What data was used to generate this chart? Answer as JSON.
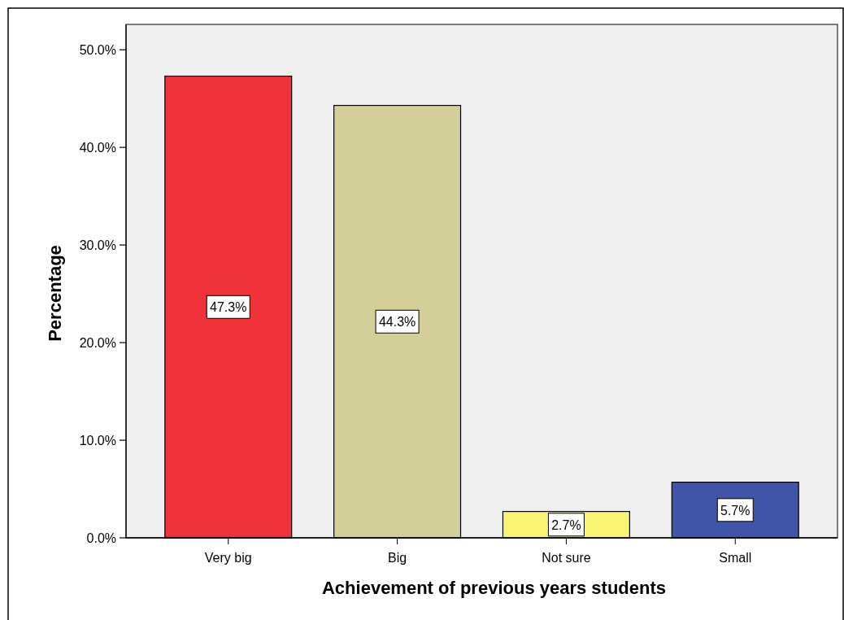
{
  "chart_data": {
    "type": "bar",
    "xlabel": "Achievement of previous years students",
    "ylabel": "Percentage",
    "categories": [
      "Very big",
      "Big",
      "Not sure",
      "Small"
    ],
    "values": [
      47.3,
      44.3,
      2.7,
      5.7
    ],
    "value_labels": [
      "47.3%",
      "44.3%",
      "2.7%",
      "5.7%"
    ],
    "colors": [
      "#f0333a",
      "#d4cf98",
      "#f8f573",
      "#3f55a8"
    ],
    "ylim": [
      0,
      52.6
    ],
    "yticks": [
      {
        "value": 0,
        "label": "0.0%"
      },
      {
        "value": 10,
        "label": "10.0%"
      },
      {
        "value": 20,
        "label": "20.0%"
      },
      {
        "value": 30,
        "label": "30.0%"
      },
      {
        "value": 40,
        "label": "40.0%"
      },
      {
        "value": 50,
        "label": "50.0%"
      }
    ],
    "grid": false
  }
}
